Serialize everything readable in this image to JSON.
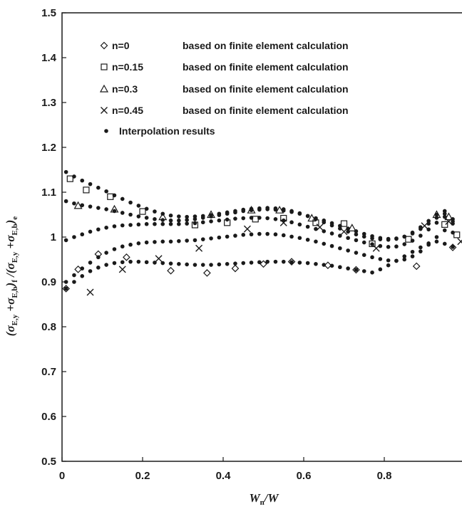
{
  "chart_data": {
    "type": "scatter",
    "title": "",
    "xlabel": {
      "main": "W",
      "sub": "n",
      "suffix": "/W"
    },
    "ylabel": {
      "parts": [
        {
          "t": "(σ",
          "s": ""
        },
        {
          "t": "",
          "s": "E,y"
        },
        {
          "t": " +σ",
          "s": ""
        },
        {
          "t": "",
          "s": "E,b"
        },
        {
          "t": ")",
          "s": ""
        },
        {
          "t": "",
          "s": "f"
        },
        {
          "t": " /(σ",
          "s": ""
        },
        {
          "t": "",
          "s": "E,y"
        },
        {
          "t": " +σ",
          "s": ""
        },
        {
          "t": "",
          "s": "E,b"
        },
        {
          "t": ")",
          "s": ""
        },
        {
          "t": "",
          "s": "e"
        }
      ]
    },
    "xlim": [
      0,
      1
    ],
    "ylim": [
      0.5,
      1.5
    ],
    "xticks": [
      0,
      0.2,
      0.4,
      0.6,
      0.8,
      1
    ],
    "xtick_labels": [
      "0",
      "0.2",
      "0.4",
      "0.6",
      "0.8",
      "1"
    ],
    "yticks": [
      0.5,
      0.6,
      0.7,
      0.8,
      0.9,
      1,
      1.1,
      1.2,
      1.3,
      1.4,
      1.5
    ],
    "ytick_labels": [
      "0.5",
      "0.6",
      "0.7",
      "0.8",
      "0.9",
      "1",
      "1.1",
      "1.2",
      "1.3",
      "1.4",
      "1.5"
    ],
    "grid": false,
    "legend_position": "top",
    "series": [
      {
        "name": "n=0",
        "legend_label": "based on finite element calculation",
        "marker": "diamond",
        "x": [
          0.01,
          0.04,
          0.09,
          0.16,
          0.27,
          0.36,
          0.43,
          0.5,
          0.57,
          0.66,
          0.73,
          0.88,
          0.97
        ],
        "y": [
          0.885,
          0.928,
          0.962,
          0.955,
          0.925,
          0.92,
          0.93,
          0.94,
          0.945,
          0.937,
          0.927,
          0.935,
          0.977
        ]
      },
      {
        "name": "n=0.15",
        "legend_label": "based on finite element calculation",
        "marker": "square",
        "x": [
          0.02,
          0.06,
          0.12,
          0.2,
          0.33,
          0.41,
          0.48,
          0.55,
          0.63,
          0.7,
          0.77,
          0.86,
          0.95,
          0.98
        ],
        "y": [
          1.13,
          1.105,
          1.09,
          1.057,
          1.027,
          1.032,
          1.04,
          1.042,
          1.032,
          1.03,
          0.985,
          0.995,
          1.028,
          1.005
        ]
      },
      {
        "name": "n=0.3",
        "legend_label": "based on finite element calculation",
        "marker": "triangle",
        "x": [
          0.04,
          0.13,
          0.25,
          0.37,
          0.47,
          0.54,
          0.62,
          0.72,
          0.93,
          0.96
        ],
        "y": [
          1.07,
          1.062,
          1.045,
          1.05,
          1.06,
          1.06,
          1.042,
          1.02,
          1.05,
          1.045
        ]
      },
      {
        "name": "n=0.45",
        "legend_label": "based on finite element calculation",
        "marker": "cross",
        "x": [
          0.07,
          0.15,
          0.24,
          0.34,
          0.46,
          0.55,
          0.64,
          0.7,
          0.78,
          0.9,
          0.96,
          0.99
        ],
        "y": [
          0.877,
          0.928,
          0.952,
          0.975,
          1.018,
          1.032,
          1.022,
          1.012,
          0.975,
          1.025,
          1.035,
          0.99
        ]
      },
      {
        "name": "Interpolation results",
        "marker": "dot",
        "curves": [
          {
            "x": [
              0.01,
              0.03,
              0.05,
              0.07,
              0.09,
              0.11,
              0.13,
              0.15,
              0.17,
              0.19,
              0.21,
              0.23,
              0.25,
              0.27,
              0.29,
              0.31,
              0.33,
              0.35,
              0.37,
              0.39,
              0.41,
              0.43,
              0.45,
              0.47,
              0.49,
              0.51,
              0.53,
              0.55,
              0.57,
              0.59,
              0.61,
              0.63,
              0.65,
              0.67,
              0.69,
              0.71,
              0.73,
              0.75,
              0.77,
              0.79,
              0.81,
              0.83,
              0.85,
              0.87,
              0.89,
              0.91,
              0.93,
              0.95,
              0.97
            ],
            "y": [
              1.145,
              1.135,
              1.126,
              1.118,
              1.11,
              1.102,
              1.093,
              1.085,
              1.077,
              1.07,
              1.063,
              1.057,
              1.052,
              1.048,
              1.046,
              1.045,
              1.046,
              1.047,
              1.049,
              1.052,
              1.055,
              1.058,
              1.061,
              1.063,
              1.064,
              1.065,
              1.064,
              1.062,
              1.058,
              1.053,
              1.047,
              1.04,
              1.033,
              1.026,
              1.019,
              1.012,
              1.006,
              1.001,
              0.997,
              0.995,
              0.994,
              0.996,
              1.001,
              1.01,
              1.022,
              1.036,
              1.05,
              1.058,
              1.04
            ]
          },
          {
            "x": [
              0.01,
              0.03,
              0.05,
              0.07,
              0.09,
              0.11,
              0.13,
              0.15,
              0.17,
              0.19,
              0.21,
              0.23,
              0.25,
              0.27,
              0.29,
              0.31,
              0.33,
              0.35,
              0.37,
              0.39,
              0.41,
              0.43,
              0.45,
              0.47,
              0.49,
              0.51,
              0.53,
              0.55,
              0.57,
              0.59,
              0.61,
              0.63,
              0.65,
              0.67,
              0.69,
              0.71,
              0.73,
              0.75,
              0.77,
              0.79,
              0.81,
              0.83,
              0.85,
              0.87,
              0.89,
              0.91,
              0.93,
              0.95,
              0.97
            ],
            "y": [
              1.08,
              1.075,
              1.071,
              1.068,
              1.065,
              1.062,
              1.058,
              1.054,
              1.05,
              1.046,
              1.043,
              1.04,
              1.038,
              1.037,
              1.037,
              1.038,
              1.04,
              1.043,
              1.046,
              1.049,
              1.052,
              1.055,
              1.058,
              1.06,
              1.061,
              1.062,
              1.061,
              1.059,
              1.056,
              1.052,
              1.047,
              1.042,
              1.037,
              1.031,
              1.025,
              1.019,
              1.013,
              1.007,
              1.002,
              0.998,
              0.996,
              0.997,
              1.001,
              1.008,
              1.018,
              1.03,
              1.043,
              1.052,
              1.035
            ]
          },
          {
            "x": [
              0.01,
              0.03,
              0.05,
              0.07,
              0.09,
              0.11,
              0.13,
              0.15,
              0.17,
              0.19,
              0.21,
              0.23,
              0.25,
              0.27,
              0.29,
              0.31,
              0.33,
              0.35,
              0.37,
              0.39,
              0.41,
              0.43,
              0.45,
              0.47,
              0.49,
              0.51,
              0.53,
              0.55,
              0.57,
              0.59,
              0.61,
              0.63,
              0.65,
              0.67,
              0.69,
              0.71,
              0.73,
              0.75,
              0.77,
              0.79,
              0.81,
              0.83,
              0.85,
              0.87,
              0.89,
              0.91,
              0.93,
              0.95,
              0.97
            ],
            "y": [
              0.993,
              1.0,
              1.006,
              1.012,
              1.017,
              1.021,
              1.024,
              1.026,
              1.027,
              1.028,
              1.029,
              1.029,
              1.029,
              1.029,
              1.029,
              1.03,
              1.031,
              1.033,
              1.035,
              1.037,
              1.039,
              1.041,
              1.042,
              1.043,
              1.043,
              1.042,
              1.04,
              1.037,
              1.033,
              1.028,
              1.023,
              1.018,
              1.013,
              1.008,
              1.003,
              0.998,
              0.993,
              0.988,
              0.984,
              0.98,
              0.978,
              0.979,
              0.984,
              0.992,
              1.003,
              1.017,
              1.032,
              1.045,
              1.03
            ]
          },
          {
            "x": [
              0.01,
              0.03,
              0.05,
              0.07,
              0.09,
              0.11,
              0.13,
              0.15,
              0.17,
              0.19,
              0.21,
              0.23,
              0.25,
              0.27,
              0.29,
              0.31,
              0.33,
              0.35,
              0.37,
              0.39,
              0.41,
              0.43,
              0.45,
              0.47,
              0.49,
              0.51,
              0.53,
              0.55,
              0.57,
              0.59,
              0.61,
              0.63,
              0.65,
              0.67,
              0.69,
              0.71,
              0.73,
              0.75,
              0.77,
              0.79,
              0.81,
              0.83,
              0.85,
              0.87,
              0.89,
              0.91,
              0.93,
              0.95,
              0.97
            ],
            "y": [
              0.9,
              0.915,
              0.93,
              0.943,
              0.955,
              0.965,
              0.973,
              0.979,
              0.983,
              0.986,
              0.988,
              0.989,
              0.99,
              0.99,
              0.991,
              0.992,
              0.993,
              0.995,
              0.997,
              0.999,
              1.001,
              1.003,
              1.005,
              1.006,
              1.007,
              1.007,
              1.006,
              1.004,
              1.001,
              0.998,
              0.994,
              0.99,
              0.985,
              0.98,
              0.975,
              0.97,
              0.965,
              0.96,
              0.955,
              0.951,
              0.948,
              0.947,
              0.95,
              0.957,
              0.968,
              0.983,
              1.0,
              1.015,
              1.01
            ]
          },
          {
            "x": [
              0.01,
              0.03,
              0.05,
              0.07,
              0.09,
              0.11,
              0.13,
              0.15,
              0.17,
              0.19,
              0.21,
              0.23,
              0.25,
              0.27,
              0.29,
              0.31,
              0.33,
              0.35,
              0.37,
              0.39,
              0.41,
              0.43,
              0.45,
              0.47,
              0.49,
              0.51,
              0.53,
              0.55,
              0.57,
              0.59,
              0.61,
              0.63,
              0.65,
              0.67,
              0.69,
              0.71,
              0.73,
              0.75,
              0.77,
              0.79,
              0.81,
              0.83,
              0.85,
              0.87,
              0.89,
              0.91,
              0.93,
              0.95,
              0.97
            ],
            "y": [
              0.885,
              0.9,
              0.913,
              0.924,
              0.932,
              0.938,
              0.942,
              0.944,
              0.945,
              0.945,
              0.944,
              0.943,
              0.942,
              0.941,
              0.94,
              0.939,
              0.938,
              0.938,
              0.938,
              0.939,
              0.94,
              0.941,
              0.942,
              0.943,
              0.944,
              0.945,
              0.945,
              0.945,
              0.944,
              0.943,
              0.942,
              0.94,
              0.938,
              0.936,
              0.933,
              0.93,
              0.927,
              0.924,
              0.921,
              0.928,
              0.937,
              0.947,
              0.957,
              0.967,
              0.977,
              0.986,
              0.99,
              0.985,
              0.978
            ]
          }
        ]
      }
    ]
  }
}
